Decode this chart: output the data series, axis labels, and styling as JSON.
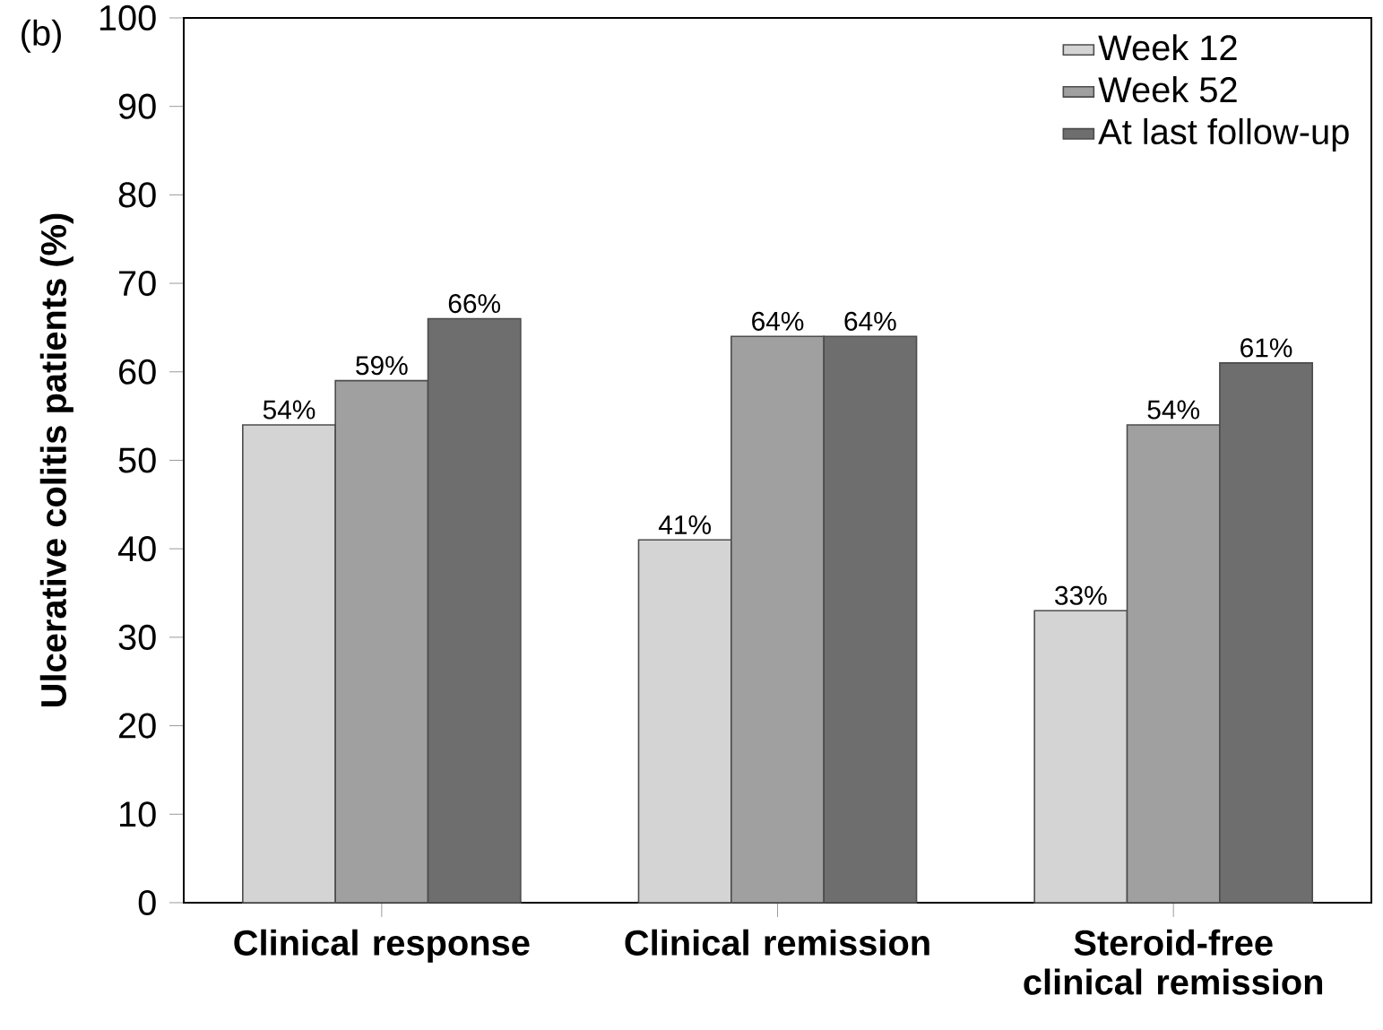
{
  "chart_data": {
    "type": "bar",
    "ylabel": "Ulcerative colitis patients (%)",
    "annotations": [
      "(b)"
    ],
    "categories": [
      "Clinical response",
      "Clinical remission",
      "Steroid-free clinical remission"
    ],
    "series": [
      {
        "name": "Week 12",
        "color": "#d4d4d4",
        "values": [
          54,
          41,
          33
        ],
        "value_labels": [
          "54%",
          "41%",
          "33%"
        ]
      },
      {
        "name": "Week 52",
        "color": "#a0a0a0",
        "values": [
          59,
          64,
          54
        ],
        "value_labels": [
          "59%",
          "64%",
          "54%"
        ]
      },
      {
        "name": "At last follow-up",
        "color": "#6e6e6e",
        "values": [
          66,
          64,
          61
        ],
        "value_labels": [
          "66%",
          "64%",
          "61%"
        ]
      }
    ],
    "ylim": [
      0,
      100
    ],
    "yticks": [
      0,
      10,
      20,
      30,
      40,
      50,
      60,
      70,
      80,
      90,
      100
    ],
    "legend": "top right"
  }
}
